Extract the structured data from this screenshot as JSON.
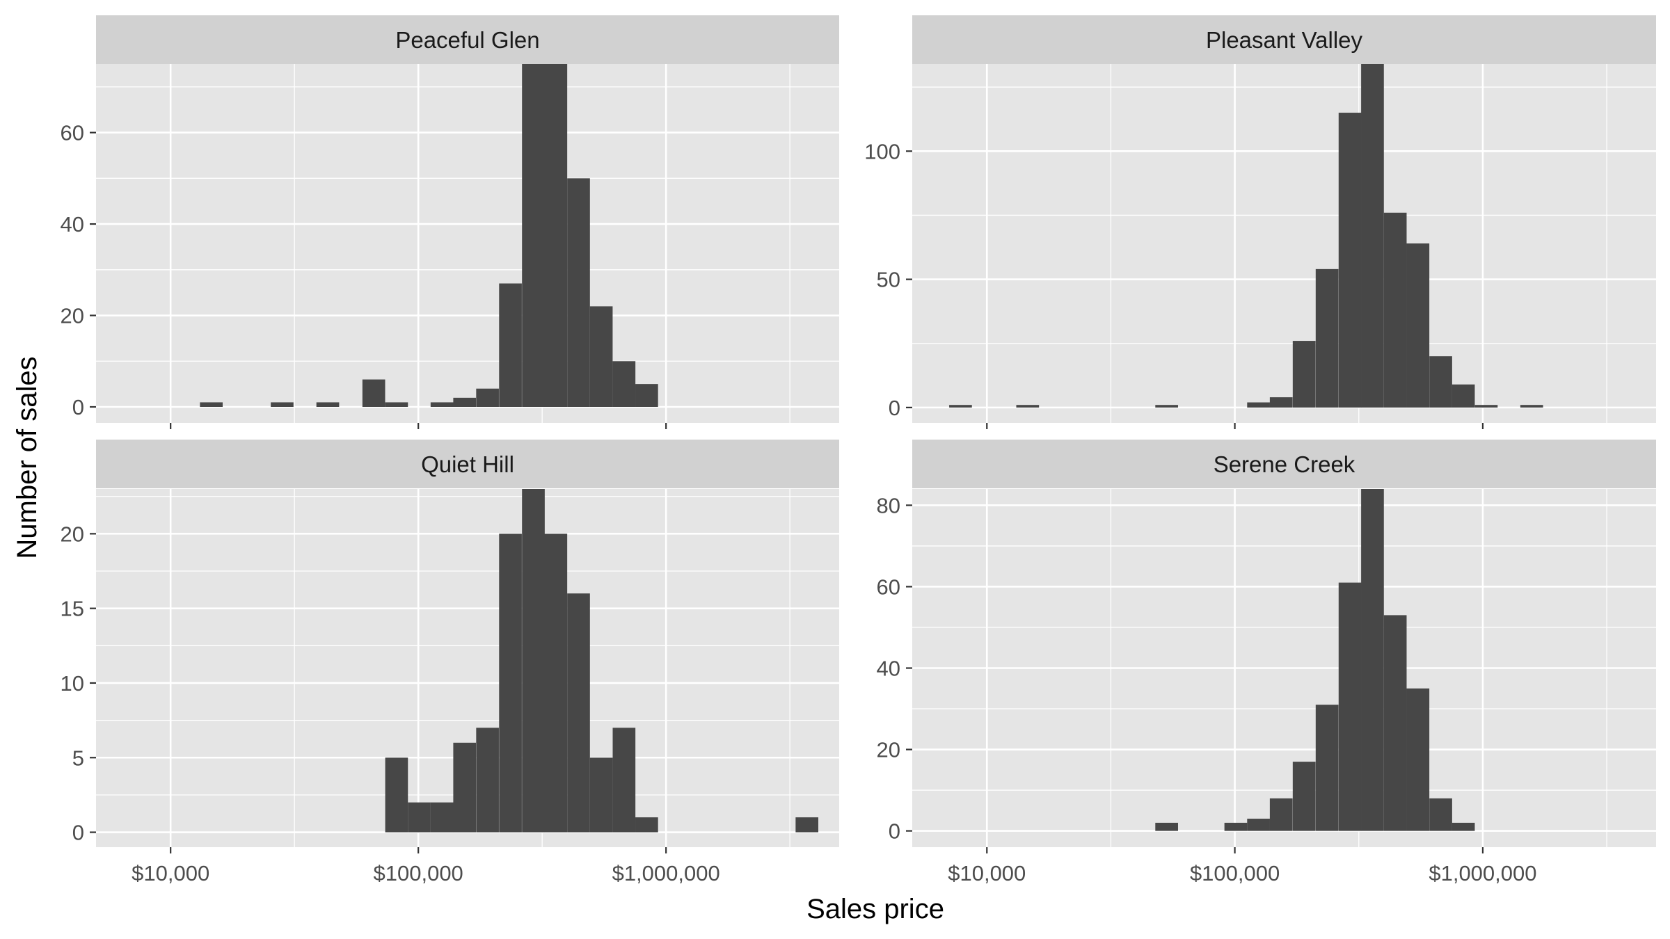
{
  "colors": {
    "panel_bg": "#e5e5e5",
    "strip_bg": "#d1d1d1",
    "grid": "#ffffff",
    "bar": "#474747",
    "tick": "#333333"
  },
  "chart_data": {
    "type": "bar",
    "subtype": "faceted-histogram",
    "xlabel": "Sales price",
    "ylabel": "Number of sales",
    "x_scale": "log10",
    "xlim": [
      5000,
      5000000
    ],
    "x_ticks": [
      10000,
      100000,
      1000000
    ],
    "x_tick_labels": [
      "$10,000",
      "$100,000",
      "$1,000,000"
    ],
    "bin_log_width": 0.0917,
    "grid": true,
    "panels": [
      {
        "title": "Peaceful Glen",
        "ylim": [
          -3.5,
          75
        ],
        "y_ticks": [
          0,
          20,
          40,
          60
        ],
        "y_tick_labels": [
          "0",
          "20",
          "40",
          "60"
        ],
        "bins": [
          {
            "x": 14600,
            "count": 1
          },
          {
            "x": 28200,
            "count": 1
          },
          {
            "x": 43100,
            "count": 1
          },
          {
            "x": 66100,
            "count": 6
          },
          {
            "x": 81700,
            "count": 1
          },
          {
            "x": 124600,
            "count": 1
          },
          {
            "x": 153800,
            "count": 2
          },
          {
            "x": 190300,
            "count": 4
          },
          {
            "x": 235500,
            "count": 27
          },
          {
            "x": 291400,
            "count": 75
          },
          {
            "x": 359100,
            "count": 75
          },
          {
            "x": 443600,
            "count": 50
          },
          {
            "x": 547800,
            "count": 22
          },
          {
            "x": 676900,
            "count": 10
          },
          {
            "x": 835400,
            "count": 5
          }
        ]
      },
      {
        "title": "Pleasant Valley",
        "ylim": [
          -6,
          134
        ],
        "y_ticks": [
          0,
          50,
          100
        ],
        "y_tick_labels": [
          "0",
          "50",
          "100"
        ],
        "bins": [
          {
            "x": 7830,
            "count": 1
          },
          {
            "x": 14600,
            "count": 1
          },
          {
            "x": 53100,
            "count": 1
          },
          {
            "x": 124600,
            "count": 2
          },
          {
            "x": 153800,
            "count": 4
          },
          {
            "x": 190300,
            "count": 26
          },
          {
            "x": 235500,
            "count": 54
          },
          {
            "x": 291400,
            "count": 115
          },
          {
            "x": 359100,
            "count": 134
          },
          {
            "x": 443600,
            "count": 76
          },
          {
            "x": 547800,
            "count": 64
          },
          {
            "x": 676900,
            "count": 20
          },
          {
            "x": 835400,
            "count": 9
          },
          {
            "x": 1033000,
            "count": 1
          },
          {
            "x": 1575000,
            "count": 1
          }
        ]
      },
      {
        "title": "Quiet Hill",
        "ylim": [
          -1,
          23
        ],
        "y_ticks": [
          0,
          5,
          10,
          15,
          20
        ],
        "y_tick_labels": [
          "0",
          "5",
          "10",
          "15",
          "20"
        ],
        "bins": [
          {
            "x": 81700,
            "count": 5
          },
          {
            "x": 100900,
            "count": 2
          },
          {
            "x": 124600,
            "count": 2
          },
          {
            "x": 153800,
            "count": 6
          },
          {
            "x": 190300,
            "count": 7
          },
          {
            "x": 235500,
            "count": 20
          },
          {
            "x": 291400,
            "count": 23
          },
          {
            "x": 359100,
            "count": 20
          },
          {
            "x": 443600,
            "count": 16
          },
          {
            "x": 547800,
            "count": 5
          },
          {
            "x": 676900,
            "count": 7
          },
          {
            "x": 835400,
            "count": 1
          },
          {
            "x": 3706000,
            "count": 1
          }
        ]
      },
      {
        "title": "Serene Creek",
        "ylim": [
          -4,
          84
        ],
        "y_ticks": [
          0,
          20,
          40,
          60,
          80
        ],
        "y_tick_labels": [
          "0",
          "20",
          "40",
          "60",
          "80"
        ],
        "bins": [
          {
            "x": 53100,
            "count": 2
          },
          {
            "x": 100900,
            "count": 2
          },
          {
            "x": 124600,
            "count": 3
          },
          {
            "x": 153800,
            "count": 8
          },
          {
            "x": 190300,
            "count": 17
          },
          {
            "x": 235500,
            "count": 31
          },
          {
            "x": 291400,
            "count": 61
          },
          {
            "x": 359100,
            "count": 84
          },
          {
            "x": 443600,
            "count": 53
          },
          {
            "x": 547800,
            "count": 35
          },
          {
            "x": 676900,
            "count": 8
          },
          {
            "x": 835400,
            "count": 2
          }
        ]
      }
    ]
  }
}
